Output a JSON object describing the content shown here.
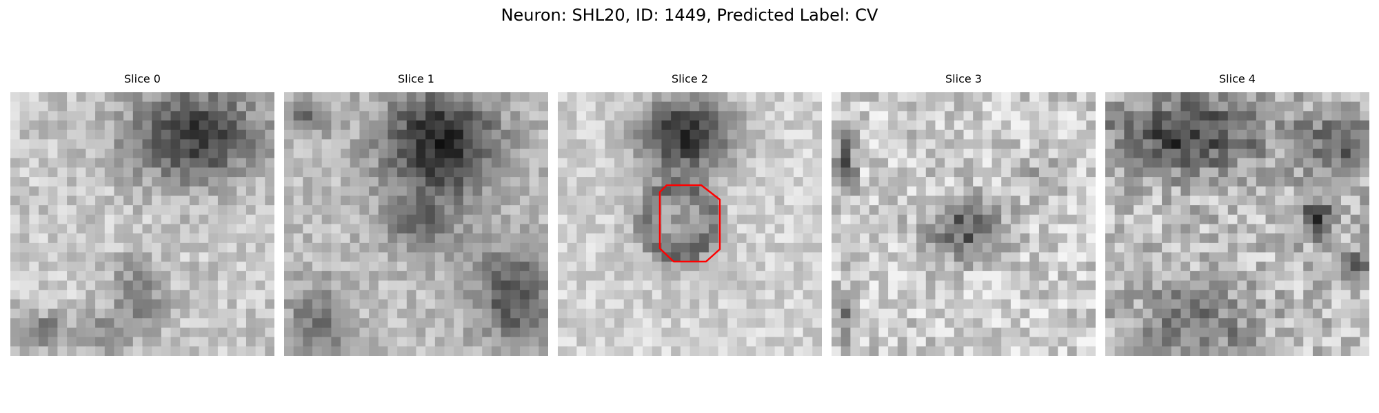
{
  "figure": {
    "title": "Neuron: SHL20, ID: 1449, Predicted Label: CV"
  },
  "panels": [
    {
      "title": "Slice 0"
    },
    {
      "title": "Slice 1"
    },
    {
      "title": "Slice 2"
    },
    {
      "title": "Slice 3"
    },
    {
      "title": "Slice 4"
    }
  ],
  "colors": {
    "background": "#ffffff",
    "roi_outline": "#ff0000",
    "colormap": "gray"
  },
  "roi": {
    "slice": "Slice 2",
    "shape": "octagon"
  }
}
